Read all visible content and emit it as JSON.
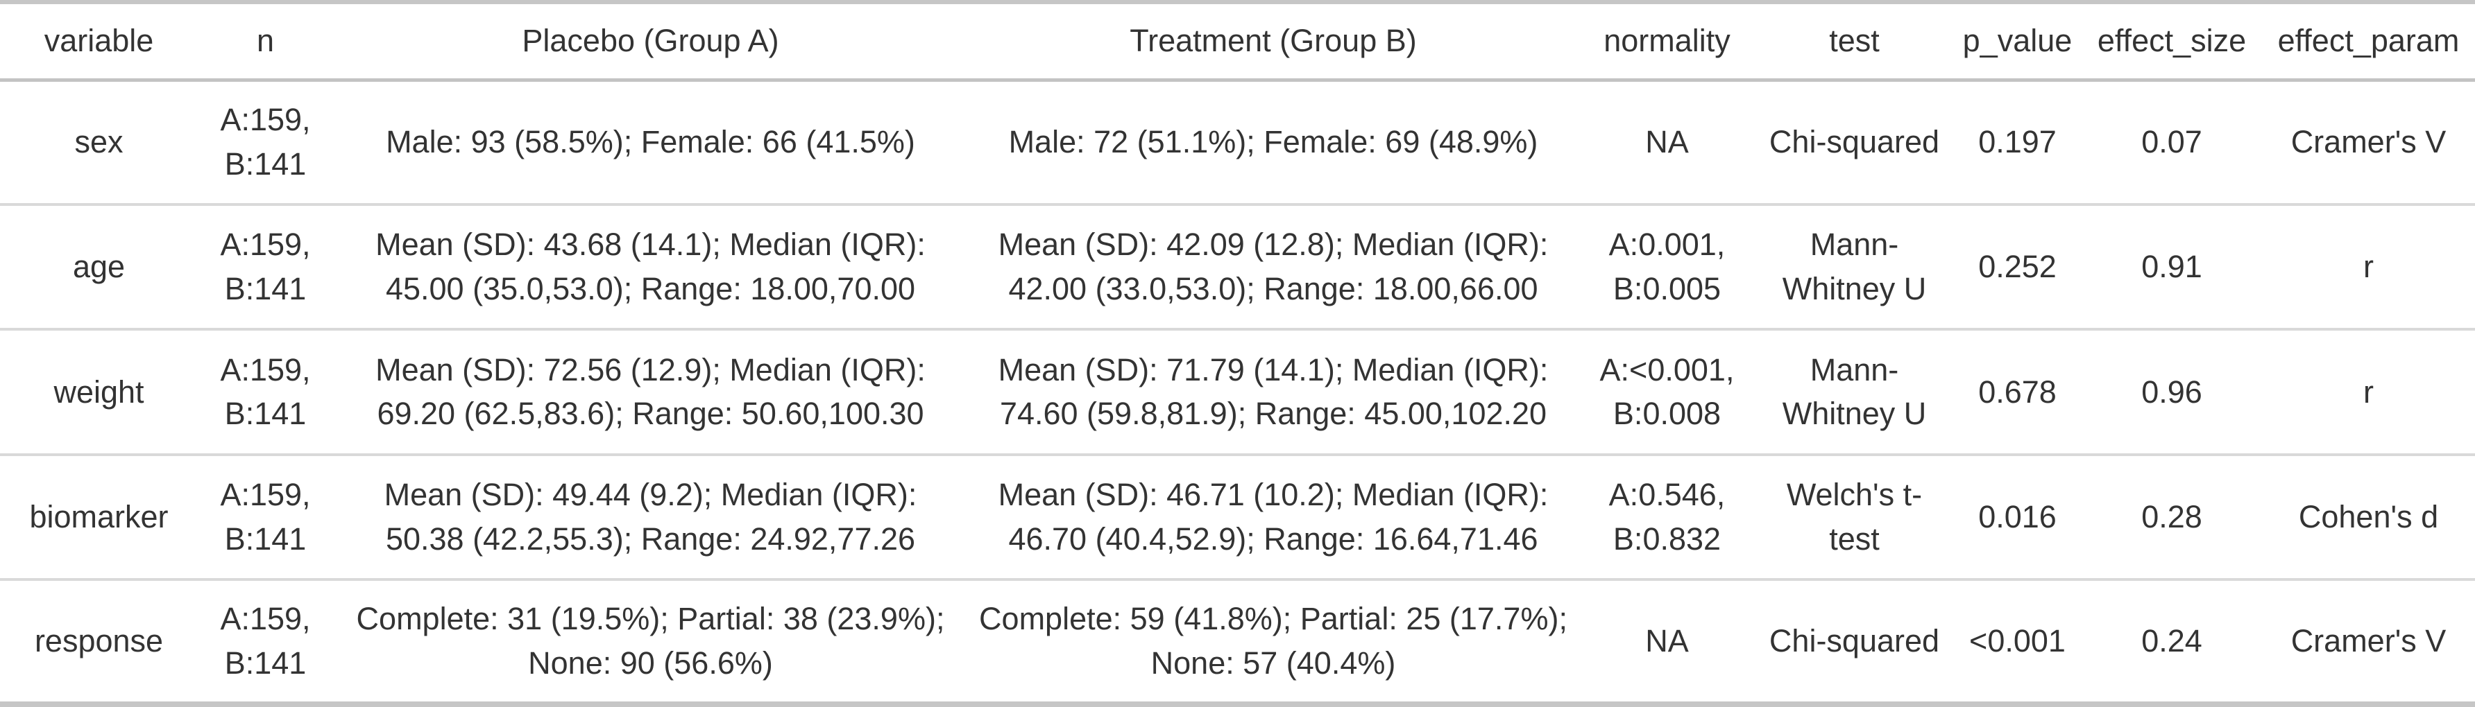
{
  "table": {
    "columns": [
      {
        "key": "variable",
        "label": "variable"
      },
      {
        "key": "n",
        "label": "n"
      },
      {
        "key": "placebo",
        "label": "Placebo (Group A)"
      },
      {
        "key": "treatment",
        "label": "Treatment (Group B)"
      },
      {
        "key": "normality",
        "label": "normality"
      },
      {
        "key": "test",
        "label": "test"
      },
      {
        "key": "p_value",
        "label": "p_value"
      },
      {
        "key": "effect_size",
        "label": "effect_size"
      },
      {
        "key": "effect_param",
        "label": "effect_param"
      }
    ],
    "rows": [
      {
        "variable": "sex",
        "n": "A:159, B:141",
        "placebo": "Male: 93 (58.5%); Female: 66 (41.5%)",
        "treatment": "Male: 72 (51.1%); Female: 69 (48.9%)",
        "normality": "NA",
        "test": "Chi-squared",
        "p_value": "0.197",
        "effect_size": "0.07",
        "effect_param": "Cramer's V"
      },
      {
        "variable": "age",
        "n": "A:159, B:141",
        "placebo": "Mean (SD): 43.68 (14.1); Median (IQR): 45.00 (35.0,53.0); Range: 18.00,70.00",
        "treatment": "Mean (SD): 42.09 (12.8); Median (IQR): 42.00 (33.0,53.0); Range: 18.00,66.00",
        "normality": "A:0.001, B:0.005",
        "test": "Mann-Whitney U",
        "p_value": "0.252",
        "effect_size": "0.91",
        "effect_param": "r"
      },
      {
        "variable": "weight",
        "n": "A:159, B:141",
        "placebo": "Mean (SD): 72.56 (12.9); Median (IQR): 69.20 (62.5,83.6); Range: 50.60,100.30",
        "treatment": "Mean (SD): 71.79 (14.1); Median (IQR): 74.60 (59.8,81.9); Range: 45.00,102.20",
        "normality": "A:<0.001, B:0.008",
        "test": "Mann-Whitney U",
        "p_value": "0.678",
        "effect_size": "0.96",
        "effect_param": "r"
      },
      {
        "variable": "biomarker",
        "n": "A:159, B:141",
        "placebo": "Mean (SD): 49.44 (9.2); Median (IQR): 50.38 (42.2,55.3); Range: 24.92,77.26",
        "treatment": "Mean (SD): 46.71 (10.2); Median (IQR): 46.70 (40.4,52.9); Range: 16.64,71.46",
        "normality": "A:0.546, B:0.832",
        "test": "Welch's t-test",
        "p_value": "0.016",
        "effect_size": "0.28",
        "effect_param": "Cohen's d"
      },
      {
        "variable": "response",
        "n": "A:159, B:141",
        "placebo": "Complete: 31 (19.5%); Partial: 38 (23.9%); None: 90 (56.6%)",
        "treatment": "Complete: 59 (41.8%); Partial: 25 (17.7%); None: 57 (40.4%)",
        "normality": "NA",
        "test": "Chi-squared",
        "p_value": "<0.001",
        "effect_size": "0.24",
        "effect_param": "Cramer's V"
      }
    ]
  },
  "colors": {
    "text": "#333333",
    "border_outer": "#c6c6c6",
    "border_header": "#c3c3c3",
    "border_row": "#d9d9d9",
    "background": "#ffffff"
  }
}
